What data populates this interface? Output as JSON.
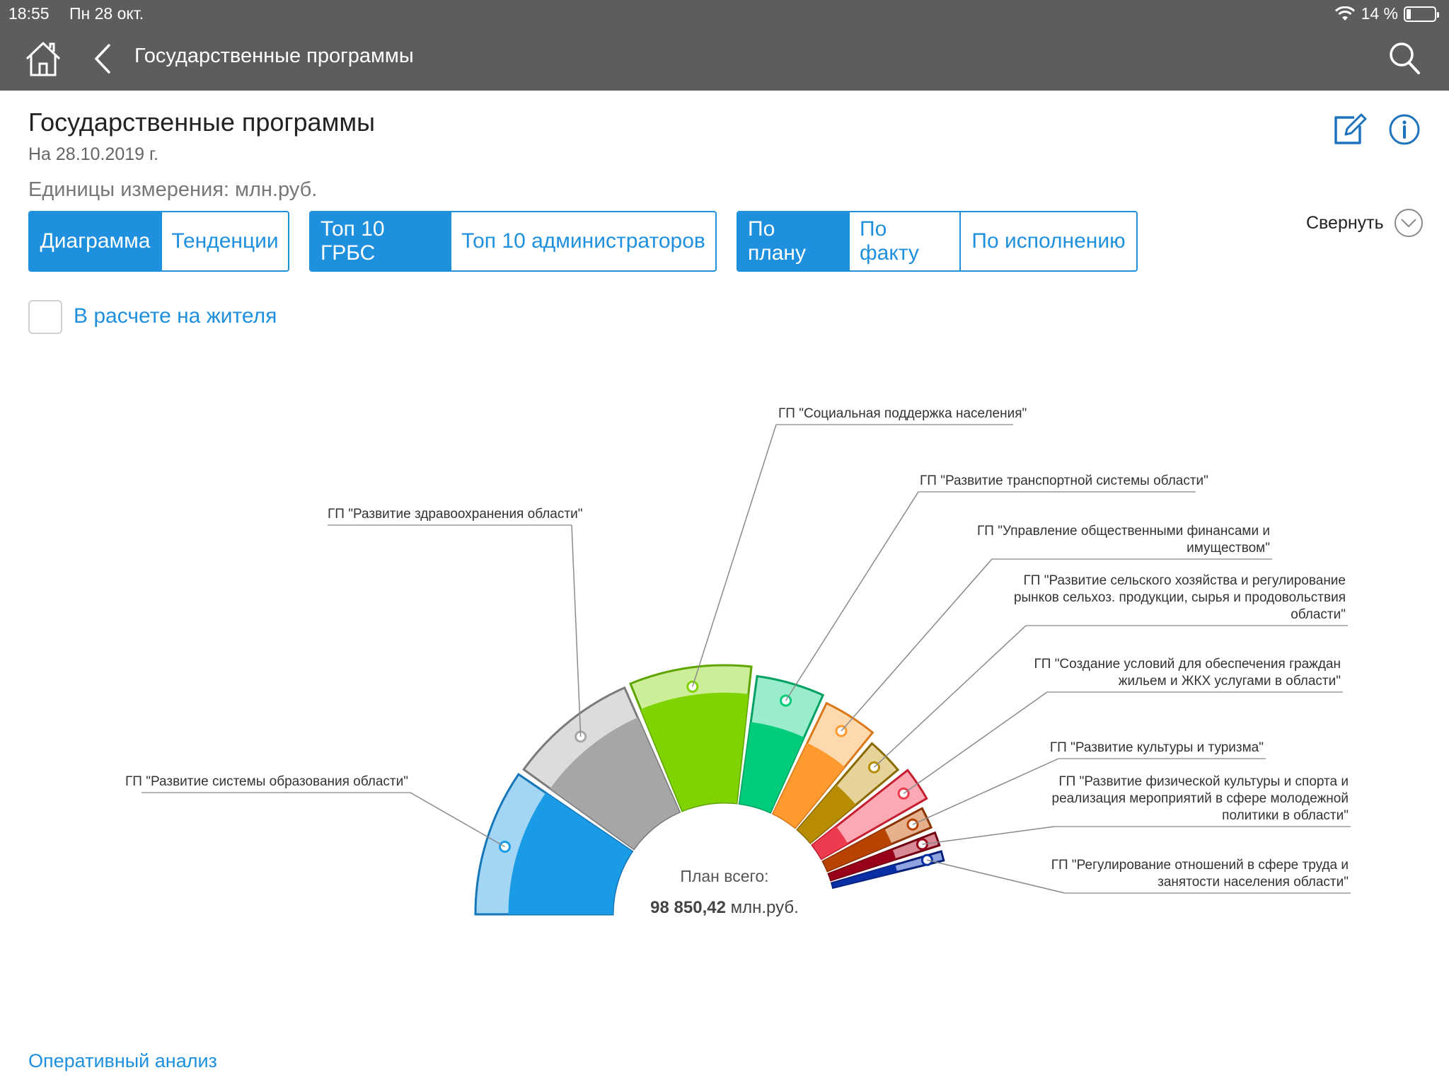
{
  "status_bar": {
    "time": "18:55",
    "date": "Пн 28 окт.",
    "battery": "14 %"
  },
  "nav": {
    "title": "Государственные программы"
  },
  "header": {
    "title": "Государственные программы",
    "date": "На 28.10.2019 г.",
    "units": "Единицы измерения: млн.руб.",
    "collapse_label": "Свернуть"
  },
  "tabs_view": [
    "Диаграмма",
    "Тенденции"
  ],
  "tabs_top": [
    "Топ 10 ГРБС",
    "Топ 10 администраторов"
  ],
  "tabs_measure": [
    "По плану",
    "По факту",
    "По исполнению"
  ],
  "per_capita_label": "В расчете на жителя",
  "footer_link": "Оперативный анализ",
  "chart": {
    "center_caption": "План всего:",
    "center_value": "98 850,42",
    "center_unit": " млн.руб."
  },
  "chart_data": {
    "type": "pie",
    "subtype": "semi-donut (rose)",
    "total": "98 850,42",
    "segments": [
      {
        "label": "ГП \"Развитие системы образования области\"",
        "color": "#1a9be6",
        "light": "#a3d6f5",
        "stroke": "#1677b8",
        "outer_rel": 0.94,
        "inner_rel": 0.76,
        "sweep_deg": 35
      },
      {
        "label": "ГП \"Развитие здравоохранения области\"",
        "color": "#a6a6a6",
        "light": "#dcdcdc",
        "stroke": "#7a7a7a",
        "outer_rel": 0.93,
        "inner_rel": 0.76,
        "sweep_deg": 32
      },
      {
        "label": "ГП \"Социальная поддержка населения\"",
        "color": "#7fd300",
        "light": "#cdee98",
        "stroke": "#5fa500",
        "outer_rel": 0.94,
        "inner_rel": 0.8,
        "sweep_deg": 30
      },
      {
        "label": "ГП \"Развитие транспортной системы области\"",
        "color": "#00cc7a",
        "light": "#9aedcc",
        "stroke": "#00a160",
        "outer_rel": 0.88,
        "inner_rel": 0.64,
        "sweep_deg": 18
      },
      {
        "label": "ГП \"Управление общественными финансами и имуществом\"",
        "color": "#ff9a2e",
        "light": "#ffd9ae",
        "stroke": "#d9791b",
        "outer_rel": 0.84,
        "inner_rel": 0.64,
        "sweep_deg": 15
      },
      {
        "label": "ГП \"Развитие сельского хозяйства и регулирование рынков сельхоз. продукции, сырья и продовольствия области\"",
        "color": "#b88c00",
        "light": "#e6d39a",
        "stroke": "#8a6a00",
        "outer_rel": 0.78,
        "inner_rel": 0.52,
        "sweep_deg": 11
      },
      {
        "label": "ГП \"Создание условий для обеспечения граждан жильем и ЖКХ услугами в области\"",
        "color": "#ec3a4e",
        "light": "#fda9b3",
        "stroke": "#c41e31",
        "outer_rel": 0.83,
        "inner_rel": 0.25,
        "sweep_deg": 10
      },
      {
        "label": "ГП \"Развитие культуры и туризма\"",
        "color": "#b84300",
        "light": "#e6b08c",
        "stroke": "#8a3200",
        "outer_rel": 0.77,
        "inner_rel": 0.62,
        "sweep_deg": 7
      },
      {
        "label": "ГП \"Развитие физической культуры и спорта и реализация мероприятий в сфере молодежной политики в области\"",
        "color": "#99001a",
        "light": "#d88a96",
        "stroke": "#70000f",
        "outer_rel": 0.78,
        "inner_rel": 0.6,
        "sweep_deg": 5
      },
      {
        "label": "ГП \"Регулирование отношений в сфере труда и занятости населения области\"",
        "color": "#0a2fa5",
        "light": "#8fa3e0",
        "stroke": "#061f78",
        "outer_rel": 0.78,
        "inner_rel": 0.58,
        "sweep_deg": 4
      }
    ]
  }
}
